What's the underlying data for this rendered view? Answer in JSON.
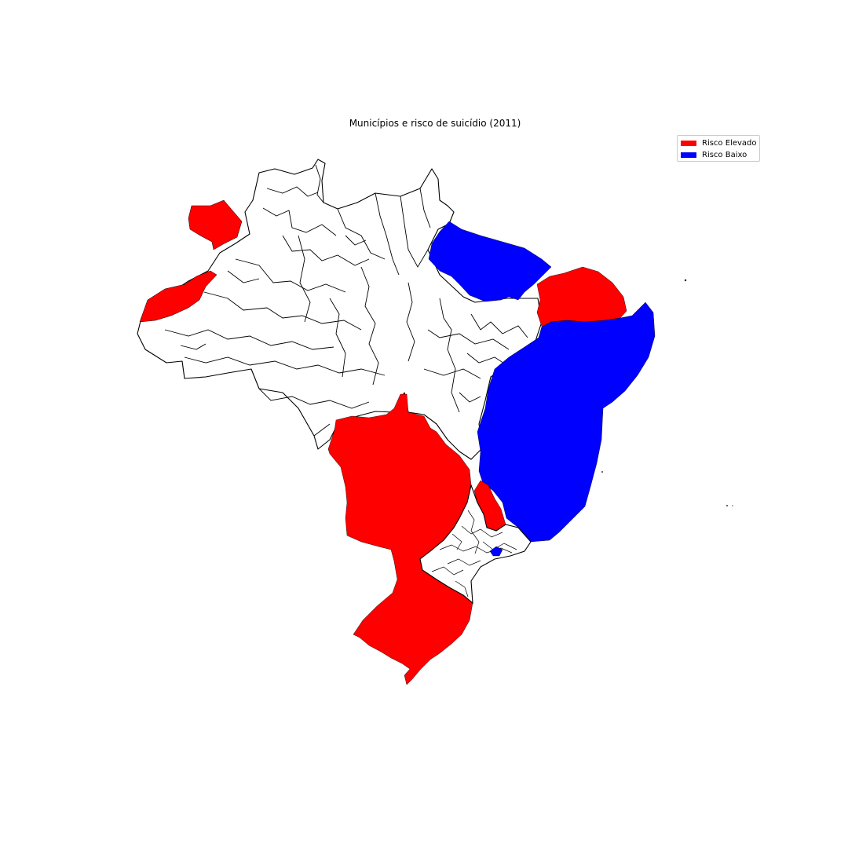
{
  "chart_data": {
    "type": "choropleth",
    "title": "Municípios e risco de suicídio (2011)",
    "legend_position": "top-right",
    "categories": [
      {
        "key": "elevado",
        "label": "Risco Elevado",
        "color": "#ff0000"
      },
      {
        "key": "baixo",
        "label": "Risco Baixo",
        "color": "#0000ff"
      },
      {
        "key": "none",
        "label": "",
        "color": "#ffffff"
      }
    ],
    "regions": [
      {
        "id": "north-municipalities",
        "category": "none"
      },
      {
        "id": "northwest-cluster",
        "category": "elevado"
      },
      {
        "id": "southwest-amazon-cluster",
        "category": "elevado"
      },
      {
        "id": "east-amazon-cluster",
        "category": "baixo"
      },
      {
        "id": "north-coast-cluster",
        "category": "elevado"
      },
      {
        "id": "northeast-cluster",
        "category": "baixo"
      },
      {
        "id": "center-south-cluster",
        "category": "elevado"
      },
      {
        "id": "minas-strip-cluster",
        "category": "elevado"
      },
      {
        "id": "southeast-municipalities",
        "category": "none"
      },
      {
        "id": "rio-small-cluster",
        "category": "baixo"
      }
    ]
  }
}
